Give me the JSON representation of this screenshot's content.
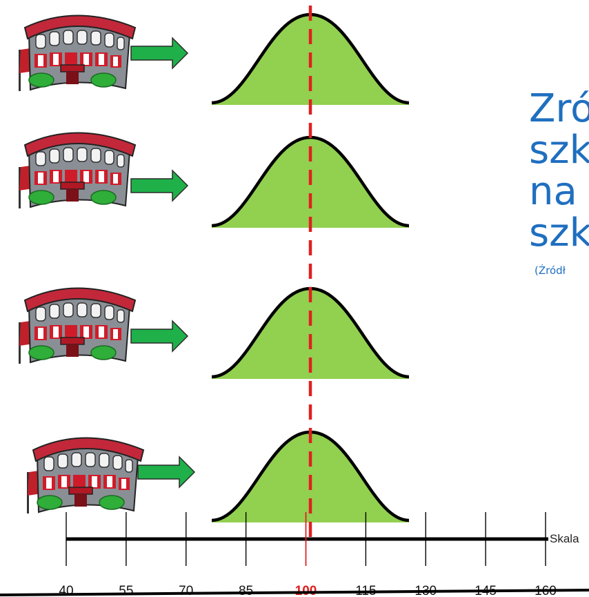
{
  "title_lines": [
    "Zró",
    "szk",
    "na",
    "szk"
  ],
  "source_note": "(Źródł",
  "axis": {
    "label": "Skala",
    "ticks": [
      40,
      55,
      70,
      85,
      100,
      115,
      130,
      145,
      160
    ],
    "highlight_value": 100,
    "highlight_color": "#e02020",
    "range": [
      40,
      160
    ]
  },
  "schools": [
    {
      "name": "school-1"
    },
    {
      "name": "school-2"
    },
    {
      "name": "school-3"
    },
    {
      "name": "school-4"
    }
  ],
  "distribution": {
    "mean": 100,
    "fill_color": "#92d050",
    "stroke_color": "#000000"
  },
  "arrow_color": "#1fb04a",
  "mean_line_color": "#e02020",
  "icon_names": [
    "school-building-icon",
    "right-arrow-icon"
  ]
}
